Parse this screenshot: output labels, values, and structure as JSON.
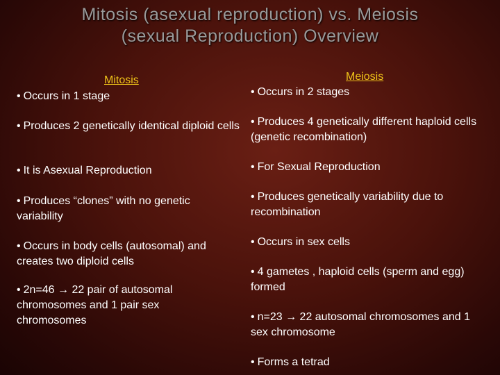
{
  "title": {
    "line1": "Mitosis (asexual reproduction) vs. Meiosis",
    "line2": "(sexual Reproduction) Overview"
  },
  "mitosis": {
    "heading": "Mitosis",
    "items": [
      "Occurs in 1 stage",
      "Produces 2 genetically identical diploid cells",
      "It is Asexual Reproduction",
      "Produces “clones” with no genetic variability",
      "Occurs in body cells (autosomal) and creates two diploid cells",
      "2n=46 → 22 pair of autosomal chromosomes and 1 pair sex chromosomes"
    ]
  },
  "meiosis": {
    "heading": "Meiosis",
    "items": [
      "Occurs in 2 stages",
      "Produces 4 genetically different haploid cells (genetic recombination)",
      "For Sexual Reproduction",
      "Produces genetically variability due to recombination",
      "Occurs in sex cells",
      "4 gametes , haploid cells (sperm and egg) formed",
      "n=23 → 22 autosomal chromosomes and 1 sex chromosome",
      "Forms a tetrad"
    ]
  },
  "colors": {
    "heading": "#f0c419",
    "title": "#9a9a9a",
    "text": "#ffffff"
  }
}
